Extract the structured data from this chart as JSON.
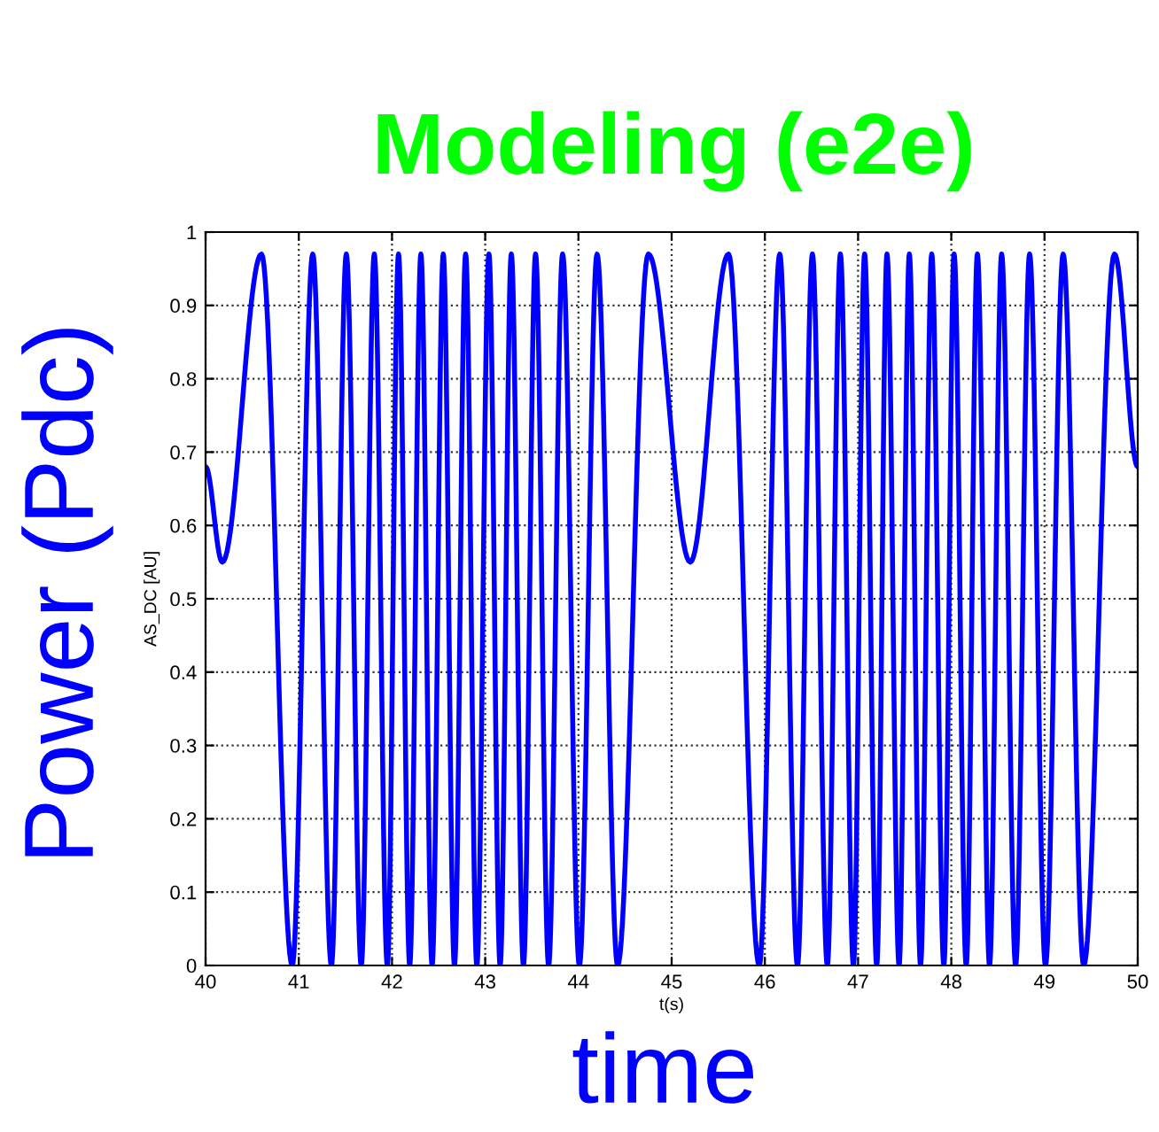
{
  "chart_data": {
    "type": "line",
    "title": "Modeling (e2e)",
    "xlabel": "t(s)",
    "ylabel": "AS_DC [AU]",
    "annotations": [
      "Power (Pdc)",
      "time"
    ],
    "x": [
      40,
      40.18,
      40.6,
      40.93,
      41.15,
      41.35,
      41.51,
      41.67,
      41.81,
      41.95,
      42.07,
      42.19,
      42.31,
      42.43,
      42.55,
      42.67,
      42.79,
      42.91,
      43.04,
      43.16,
      43.28,
      43.41,
      43.54,
      43.68,
      43.83,
      44.01,
      44.2,
      44.42,
      44.75,
      45.2,
      45.61,
      45.94,
      46.16,
      46.35,
      46.51,
      46.67,
      46.81,
      46.95,
      47.07,
      47.2,
      47.31,
      47.44,
      47.55,
      47.67,
      47.79,
      47.92,
      48.03,
      48.16,
      48.28,
      48.41,
      48.54,
      48.69,
      48.84,
      49.01,
      49.2,
      49.42,
      49.75,
      50
    ],
    "series": [
      {
        "color": "#0000ff",
        "values": [
          0.68,
          0.55,
          0.97,
          0,
          0.97,
          0,
          0.97,
          0,
          0.97,
          0,
          0.97,
          0,
          0.97,
          0,
          0.97,
          0,
          0.97,
          0,
          0.97,
          0,
          0.97,
          0,
          0.97,
          0,
          0.97,
          0,
          0.97,
          0,
          0.97,
          0.55,
          0.97,
          0,
          0.97,
          0,
          0.97,
          0,
          0.97,
          0,
          0.97,
          0,
          0.97,
          0,
          0.97,
          0,
          0.97,
          0,
          0.97,
          0,
          0.97,
          0,
          0.97,
          0,
          0.97,
          0,
          0.97,
          0,
          0.97,
          0.68
        ]
      }
    ],
    "xlim": [
      40,
      50
    ],
    "ylim": [
      0,
      1
    ],
    "xticks": [
      40,
      41,
      42,
      43,
      44,
      45,
      46,
      47,
      48,
      49,
      50
    ],
    "yticks": [
      0,
      0.1,
      0.2,
      0.3,
      0.4,
      0.5,
      0.6,
      0.7,
      0.8,
      0.9,
      1
    ],
    "grid": true,
    "line_style": "solid",
    "marker": "none"
  }
}
